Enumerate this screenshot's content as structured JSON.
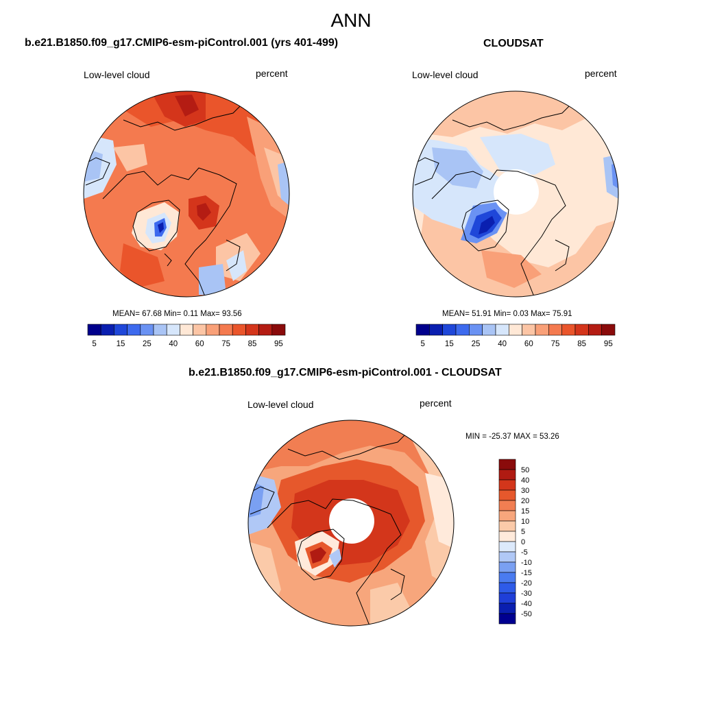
{
  "figure": {
    "title": "ANN"
  },
  "palettes": {
    "absolute": [
      "#00008c",
      "#0a1fb0",
      "#1f47d9",
      "#3d6aee",
      "#6a92f3",
      "#a9c4f5",
      "#d6e6fb",
      "#ffe8d6",
      "#fcc5a5",
      "#f9a078",
      "#f47a4f",
      "#ea552b",
      "#d4351b",
      "#b41c13",
      "#8a0b0b"
    ],
    "difference": [
      "#000090",
      "#0a1fb0",
      "#1f3fd8",
      "#2e5be8",
      "#4a7bf0",
      "#7aa0f2",
      "#b0c8f6",
      "#dce9fb",
      "#ffeadb",
      "#fbcaa9",
      "#f7a67c",
      "#f17e52",
      "#e6582c",
      "#d3361b",
      "#b01b12",
      "#8a0b0b"
    ]
  },
  "panels": [
    {
      "title": "b.e21.B1850.f09_g17.CMIP6-esm-piControl.001 (yrs 401-499)",
      "variable": "Low-level cloud",
      "units": "percent",
      "stats_text": "MEAN=  67.68  Min=   0.11  Max=  93.56",
      "colorbar_labels": [
        "5",
        "15",
        "25",
        "40",
        "60",
        "75",
        "85",
        "95"
      ]
    },
    {
      "title": "CLOUDSAT",
      "variable": "Low-level cloud",
      "units": "percent",
      "stats_text": "MEAN=  51.91  Min=   0.03  Max=  75.91",
      "colorbar_labels": [
        "5",
        "15",
        "25",
        "40",
        "60",
        "75",
        "85",
        "95"
      ]
    },
    {
      "title": "b.e21.B1850.f09_g17.CMIP6-esm-piControl.001 - CLOUDSAT",
      "variable": "Low-level cloud",
      "units": "percent",
      "stats_text": "MIN = -25.37 MAX =  53.26",
      "colorbar_labels": [
        "50",
        "40",
        "30",
        "20",
        "15",
        "10",
        "5",
        "0",
        "-5",
        "-10",
        "-15",
        "-20",
        "-30",
        "-40",
        "-50"
      ]
    }
  ],
  "chart_data": [
    {
      "type": "heatmap",
      "projection": "north polar stereographic",
      "title": "b.e21.B1850.f09_g17.CMIP6-esm-piControl.001 (yrs 401-499)",
      "variable": "Low-level cloud",
      "units": "percent",
      "mean": 67.68,
      "min": 0.11,
      "max": 93.56,
      "levels": [
        5,
        10,
        15,
        20,
        25,
        30,
        40,
        50,
        60,
        70,
        75,
        80,
        85,
        90,
        95
      ]
    },
    {
      "type": "heatmap",
      "projection": "north polar stereographic",
      "title": "CLOUDSAT",
      "variable": "Low-level cloud",
      "units": "percent",
      "mean": 51.91,
      "min": 0.03,
      "max": 75.91,
      "levels": [
        5,
        10,
        15,
        20,
        25,
        30,
        40,
        50,
        60,
        70,
        75,
        80,
        85,
        90,
        95
      ]
    },
    {
      "type": "heatmap",
      "projection": "north polar stereographic",
      "title": "b.e21.B1850.f09_g17.CMIP6-esm-piControl.001 - CLOUDSAT",
      "variable": "Low-level cloud",
      "units": "percent",
      "min": -25.37,
      "max": 53.26,
      "levels": [
        -50,
        -40,
        -30,
        -20,
        -15,
        -10,
        -5,
        0,
        5,
        10,
        15,
        20,
        30,
        40,
        50
      ]
    }
  ]
}
